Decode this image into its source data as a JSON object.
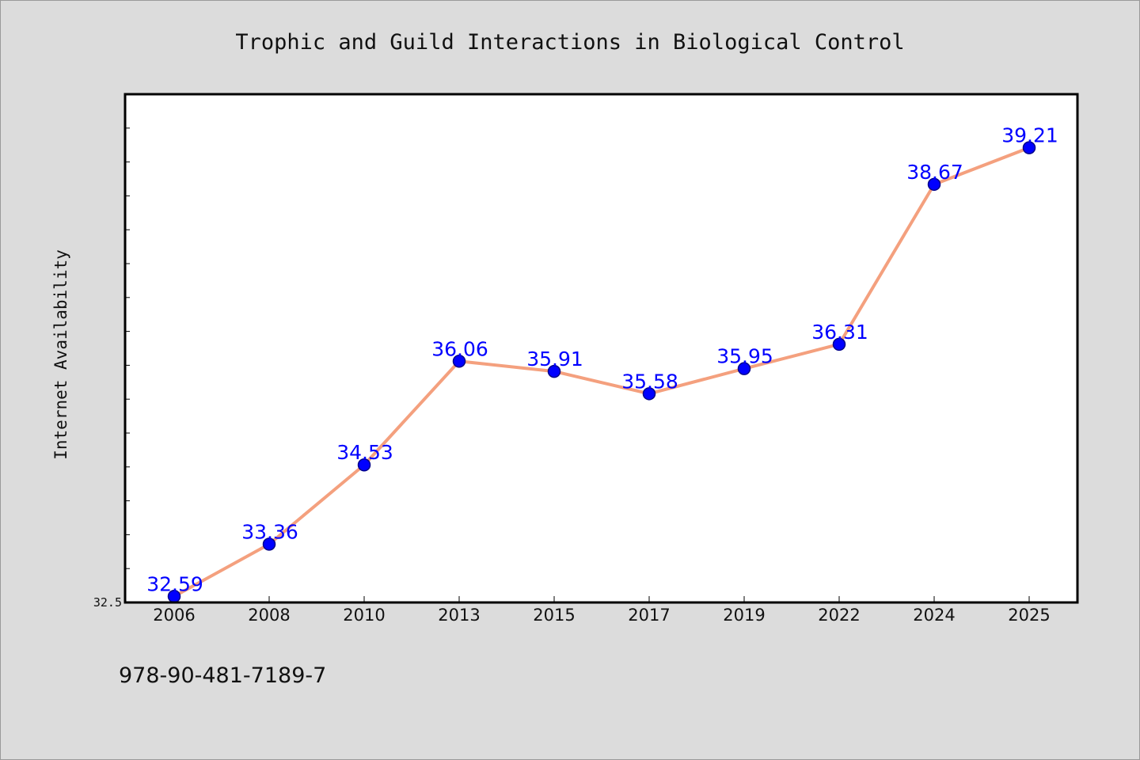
{
  "chart_data": {
    "type": "line",
    "title": "Trophic and Guild Interactions in Biological Control",
    "xlabel": "",
    "ylabel": "Internet Availability",
    "categories": [
      "2006",
      "2008",
      "2010",
      "2013",
      "2015",
      "2017",
      "2019",
      "2022",
      "2024",
      "2025"
    ],
    "series": [
      {
        "values": [
          32.59,
          33.36,
          34.53,
          36.06,
          35.91,
          35.58,
          35.95,
          36.31,
          38.67,
          39.21
        ],
        "labels": [
          "32.59",
          "33.36",
          "34.53",
          "36.06",
          "35.91",
          "35.58",
          "35.95",
          "36.31",
          "38.67",
          "39.21"
        ]
      }
    ],
    "ylim": [
      32.5,
      40.0
    ],
    "yticks_labeled": [
      "32.5"
    ],
    "grid": false,
    "legend": "none",
    "colors": {
      "line": "#f4a07e",
      "marker": "#0000ff",
      "marker_edge": "#00008b",
      "data_label": "#0000ff",
      "plot_bg": "#ffffff",
      "figure_bg": "#dcdcdc"
    }
  },
  "footer": {
    "isbn": "978-90-481-7189-7"
  }
}
